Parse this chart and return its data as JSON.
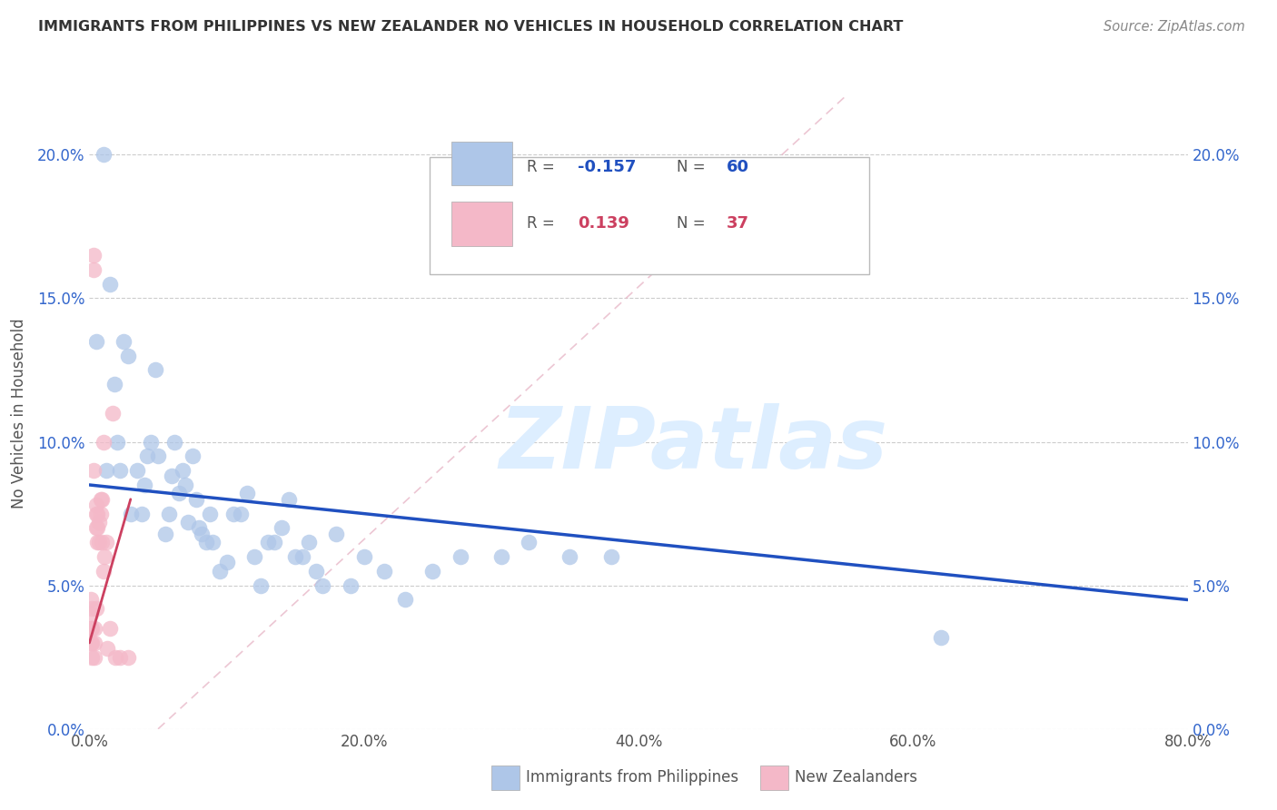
{
  "title": "IMMIGRANTS FROM PHILIPPINES VS NEW ZEALANDER NO VEHICLES IN HOUSEHOLD CORRELATION CHART",
  "source": "Source: ZipAtlas.com",
  "ylabel": "No Vehicles in Household",
  "xlim": [
    0.0,
    0.8
  ],
  "ylim": [
    0.0,
    0.22
  ],
  "xticks": [
    0.0,
    0.2,
    0.4,
    0.6,
    0.8
  ],
  "yticks": [
    0.0,
    0.05,
    0.1,
    0.15,
    0.2
  ],
  "blue_R": -0.157,
  "blue_N": 60,
  "pink_R": 0.139,
  "pink_N": 37,
  "blue_color": "#aec6e8",
  "pink_color": "#f4b8c8",
  "blue_line_color": "#2050c0",
  "pink_line_color": "#cc4060",
  "ref_line_color": "#e8b8c8",
  "watermark_color": "#ddeeff",
  "legend_label_blue": "Immigrants from Philippines",
  "legend_label_pink": "New Zealanders",
  "blue_scatter_x": [
    0.005,
    0.01,
    0.012,
    0.015,
    0.018,
    0.02,
    0.022,
    0.025,
    0.028,
    0.03,
    0.035,
    0.038,
    0.04,
    0.042,
    0.045,
    0.048,
    0.05,
    0.055,
    0.058,
    0.06,
    0.062,
    0.065,
    0.068,
    0.07,
    0.072,
    0.075,
    0.078,
    0.08,
    0.082,
    0.085,
    0.088,
    0.09,
    0.095,
    0.1,
    0.105,
    0.11,
    0.115,
    0.12,
    0.125,
    0.13,
    0.135,
    0.14,
    0.145,
    0.15,
    0.155,
    0.16,
    0.165,
    0.17,
    0.18,
    0.19,
    0.2,
    0.215,
    0.23,
    0.25,
    0.27,
    0.3,
    0.32,
    0.35,
    0.38,
    0.62
  ],
  "blue_scatter_y": [
    0.135,
    0.2,
    0.09,
    0.155,
    0.12,
    0.1,
    0.09,
    0.135,
    0.13,
    0.075,
    0.09,
    0.075,
    0.085,
    0.095,
    0.1,
    0.125,
    0.095,
    0.068,
    0.075,
    0.088,
    0.1,
    0.082,
    0.09,
    0.085,
    0.072,
    0.095,
    0.08,
    0.07,
    0.068,
    0.065,
    0.075,
    0.065,
    0.055,
    0.058,
    0.075,
    0.075,
    0.082,
    0.06,
    0.05,
    0.065,
    0.065,
    0.07,
    0.08,
    0.06,
    0.06,
    0.065,
    0.055,
    0.05,
    0.068,
    0.05,
    0.06,
    0.055,
    0.045,
    0.055,
    0.06,
    0.06,
    0.065,
    0.06,
    0.06,
    0.032
  ],
  "pink_scatter_x": [
    0.001,
    0.001,
    0.001,
    0.001,
    0.002,
    0.002,
    0.002,
    0.002,
    0.003,
    0.003,
    0.003,
    0.004,
    0.004,
    0.004,
    0.005,
    0.005,
    0.005,
    0.005,
    0.006,
    0.006,
    0.006,
    0.007,
    0.007,
    0.008,
    0.008,
    0.009,
    0.009,
    0.01,
    0.01,
    0.011,
    0.012,
    0.013,
    0.015,
    0.017,
    0.019,
    0.022,
    0.028
  ],
  "pink_scatter_y": [
    0.03,
    0.035,
    0.04,
    0.045,
    0.025,
    0.03,
    0.035,
    0.042,
    0.16,
    0.165,
    0.09,
    0.025,
    0.03,
    0.035,
    0.07,
    0.075,
    0.078,
    0.042,
    0.065,
    0.07,
    0.075,
    0.065,
    0.072,
    0.075,
    0.08,
    0.065,
    0.08,
    0.1,
    0.055,
    0.06,
    0.065,
    0.028,
    0.035,
    0.11,
    0.025,
    0.025,
    0.025
  ]
}
